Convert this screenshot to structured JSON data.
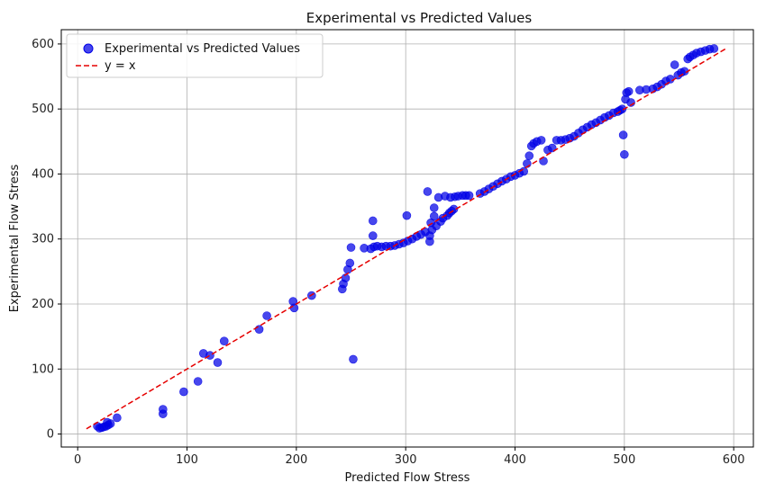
{
  "chart_data": {
    "type": "scatter",
    "title": "Experimental vs Predicted Values",
    "xlabel": "Predicted Flow Stress",
    "ylabel": "Experimental Flow Stress",
    "xlim": [
      -15,
      618
    ],
    "ylim": [
      -20,
      622
    ],
    "xticks": [
      0,
      100,
      200,
      300,
      400,
      500,
      600
    ],
    "yticks": [
      0,
      100,
      200,
      300,
      400,
      500,
      600
    ],
    "grid": true,
    "legend_position": "top-left",
    "series": [
      {
        "name": "Experimental vs Predicted Values",
        "kind": "scatter",
        "color": "#0000e6",
        "points": [
          [
            18,
            12
          ],
          [
            20,
            9
          ],
          [
            22,
            10
          ],
          [
            24,
            11
          ],
          [
            26,
            12
          ],
          [
            28,
            14
          ],
          [
            30,
            16
          ],
          [
            27,
            18
          ],
          [
            36,
            25
          ],
          [
            78,
            31
          ],
          [
            78,
            38
          ],
          [
            97,
            65
          ],
          [
            110,
            81
          ],
          [
            115,
            124
          ],
          [
            121,
            121
          ],
          [
            128,
            110
          ],
          [
            134,
            143
          ],
          [
            166,
            161
          ],
          [
            173,
            182
          ],
          [
            197,
            204
          ],
          [
            198,
            194
          ],
          [
            214,
            213
          ],
          [
            242,
            223
          ],
          [
            243,
            231
          ],
          [
            245,
            240
          ],
          [
            247,
            253
          ],
          [
            249,
            263
          ],
          [
            250,
            287
          ],
          [
            252,
            115
          ],
          [
            262,
            286
          ],
          [
            268,
            285
          ],
          [
            270,
            328
          ],
          [
            270,
            305
          ],
          [
            271,
            288
          ],
          [
            274,
            289
          ],
          [
            278,
            288
          ],
          [
            282,
            289
          ],
          [
            286,
            289
          ],
          [
            290,
            290
          ],
          [
            294,
            292
          ],
          [
            298,
            294
          ],
          [
            301,
            336
          ],
          [
            302,
            297
          ],
          [
            306,
            300
          ],
          [
            310,
            304
          ],
          [
            314,
            307
          ],
          [
            318,
            311
          ],
          [
            320,
            373
          ],
          [
            322,
            296
          ],
          [
            322,
            305
          ],
          [
            323,
            325
          ],
          [
            324,
            314
          ],
          [
            326,
            335
          ],
          [
            326,
            348
          ],
          [
            328,
            320
          ],
          [
            330,
            364
          ],
          [
            332,
            327
          ],
          [
            334,
            332
          ],
          [
            336,
            366
          ],
          [
            338,
            336
          ],
          [
            340,
            340
          ],
          [
            341,
            364
          ],
          [
            342,
            343
          ],
          [
            344,
            346
          ],
          [
            345,
            365
          ],
          [
            348,
            366
          ],
          [
            352,
            367
          ],
          [
            355,
            367
          ],
          [
            358,
            367
          ],
          [
            368,
            370
          ],
          [
            372,
            373
          ],
          [
            376,
            377
          ],
          [
            380,
            381
          ],
          [
            384,
            385
          ],
          [
            388,
            389
          ],
          [
            392,
            392
          ],
          [
            396,
            396
          ],
          [
            400,
            398
          ],
          [
            404,
            401
          ],
          [
            408,
            404
          ],
          [
            411,
            416
          ],
          [
            413,
            428
          ],
          [
            415,
            443
          ],
          [
            417,
            447
          ],
          [
            420,
            450
          ],
          [
            424,
            452
          ],
          [
            426,
            420
          ],
          [
            430,
            437
          ],
          [
            434,
            440
          ],
          [
            438,
            452
          ],
          [
            442,
            452
          ],
          [
            446,
            453
          ],
          [
            450,
            455
          ],
          [
            454,
            458
          ],
          [
            458,
            463
          ],
          [
            462,
            468
          ],
          [
            466,
            472
          ],
          [
            470,
            476
          ],
          [
            474,
            479
          ],
          [
            478,
            483
          ],
          [
            482,
            487
          ],
          [
            486,
            490
          ],
          [
            490,
            494
          ],
          [
            494,
            496
          ],
          [
            496,
            498
          ],
          [
            498,
            500
          ],
          [
            499,
            460
          ],
          [
            500,
            430
          ],
          [
            501,
            515
          ],
          [
            502,
            525
          ],
          [
            504,
            527
          ],
          [
            506,
            510
          ],
          [
            514,
            529
          ],
          [
            520,
            530
          ],
          [
            526,
            531
          ],
          [
            530,
            534
          ],
          [
            534,
            538
          ],
          [
            538,
            543
          ],
          [
            542,
            546
          ],
          [
            546,
            568
          ],
          [
            549,
            552
          ],
          [
            552,
            556
          ],
          [
            555,
            558
          ],
          [
            558,
            577
          ],
          [
            560,
            580
          ],
          [
            563,
            583
          ],
          [
            566,
            586
          ],
          [
            570,
            588
          ],
          [
            574,
            590
          ],
          [
            578,
            592
          ],
          [
            582,
            593
          ]
        ]
      },
      {
        "name": "y = x",
        "kind": "line",
        "color": "#e60000",
        "dash": true,
        "points": [
          [
            8,
            8
          ],
          [
            594,
            594
          ]
        ]
      }
    ]
  }
}
